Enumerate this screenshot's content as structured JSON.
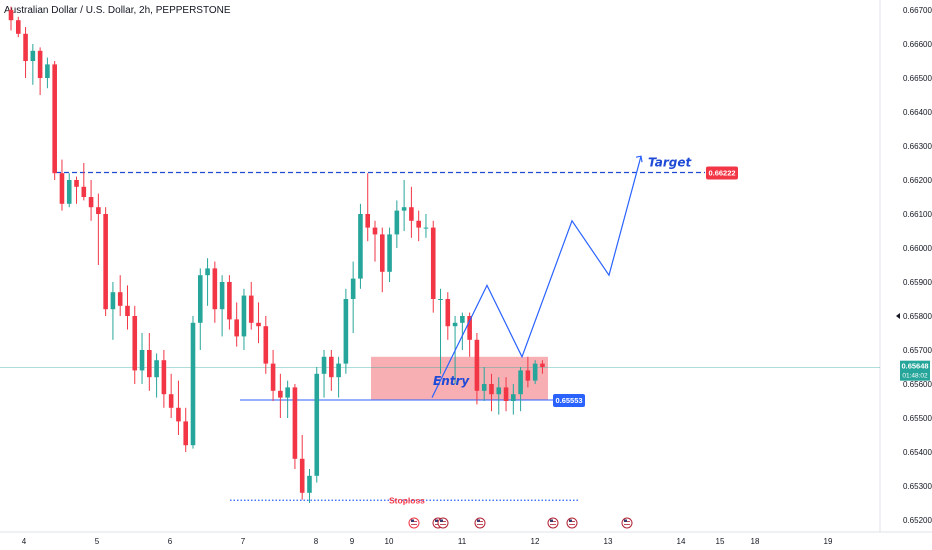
{
  "header": {
    "symbol_title": "Australian Dollar / U.S. Dollar, 2h, PEPPERSTONE"
  },
  "colors": {
    "bull": "#26a69a",
    "bear": "#f23645",
    "blue": "#2962ff",
    "annotation_blue": "#1e4ad6",
    "zone_fill": "#f7a1a7",
    "target_tag": "#f23645",
    "entry_tag": "#2962ff",
    "current_tag": "#26a69a"
  },
  "chart_data": {
    "type": "candlestick",
    "instrument": "AUDUSD",
    "timeframe": "2h",
    "ylim": [
      0.652,
      0.6672
    ],
    "y_ticks": [
      "0.66700",
      "0.66600",
      "0.66500",
      "0.66400",
      "0.66300",
      "0.66200",
      "0.66100",
      "0.66000",
      "0.65900",
      "0.65800",
      "0.65700",
      "0.65600",
      "0.65500",
      "0.65400",
      "0.65300",
      "0.65200"
    ],
    "x_ticks": [
      "4",
      "5",
      "6",
      "7",
      "8",
      "9",
      "10",
      "11",
      "12",
      "13",
      "14",
      "15",
      "18",
      "19"
    ],
    "candles": [
      [
        0.667,
        0.6671,
        0.6664,
        0.6667
      ],
      [
        0.6667,
        0.6668,
        0.6662,
        0.6663
      ],
      [
        0.6663,
        0.6665,
        0.665,
        0.6655
      ],
      [
        0.6655,
        0.666,
        0.6648,
        0.6658
      ],
      [
        0.6658,
        0.6659,
        0.6645,
        0.665
      ],
      [
        0.665,
        0.6656,
        0.6647,
        0.6654
      ],
      [
        0.6654,
        0.6655,
        0.662,
        0.6622
      ],
      [
        0.6622,
        0.6626,
        0.6611,
        0.6613
      ],
      [
        0.6613,
        0.6622,
        0.6612,
        0.662
      ],
      [
        0.662,
        0.6621,
        0.6613,
        0.6618
      ],
      [
        0.6618,
        0.6625,
        0.6614,
        0.6615
      ],
      [
        0.6615,
        0.662,
        0.6608,
        0.6612
      ],
      [
        0.6612,
        0.6616,
        0.6595,
        0.661
      ],
      [
        0.661,
        0.6612,
        0.658,
        0.6582
      ],
      [
        0.6582,
        0.659,
        0.6573,
        0.6587
      ],
      [
        0.6587,
        0.6592,
        0.658,
        0.6583
      ],
      [
        0.6583,
        0.6589,
        0.6576,
        0.658
      ],
      [
        0.658,
        0.6583,
        0.656,
        0.6564
      ],
      [
        0.6564,
        0.6575,
        0.656,
        0.657
      ],
      [
        0.657,
        0.6575,
        0.6558,
        0.6562
      ],
      [
        0.6562,
        0.6569,
        0.6556,
        0.6567
      ],
      [
        0.6567,
        0.657,
        0.6553,
        0.6557
      ],
      [
        0.6557,
        0.6563,
        0.655,
        0.6553
      ],
      [
        0.6553,
        0.6561,
        0.6545,
        0.6549
      ],
      [
        0.6549,
        0.6553,
        0.654,
        0.6542
      ],
      [
        0.6542,
        0.658,
        0.6541,
        0.6578
      ],
      [
        0.6578,
        0.6594,
        0.657,
        0.6592
      ],
      [
        0.6592,
        0.6597,
        0.6583,
        0.6594
      ],
      [
        0.6594,
        0.6596,
        0.6578,
        0.6582
      ],
      [
        0.6582,
        0.6592,
        0.6574,
        0.659
      ],
      [
        0.659,
        0.6592,
        0.6576,
        0.6579
      ],
      [
        0.6579,
        0.6584,
        0.6571,
        0.6574
      ],
      [
        0.6574,
        0.6588,
        0.657,
        0.6586
      ],
      [
        0.6586,
        0.659,
        0.6576,
        0.6578
      ],
      [
        0.6578,
        0.6584,
        0.6572,
        0.6577
      ],
      [
        0.6577,
        0.658,
        0.6563,
        0.6566
      ],
      [
        0.6566,
        0.657,
        0.6555,
        0.6558
      ],
      [
        0.6558,
        0.6563,
        0.655,
        0.6556
      ],
      [
        0.6556,
        0.6561,
        0.655,
        0.6559
      ],
      [
        0.6559,
        0.656,
        0.6535,
        0.6538
      ],
      [
        0.6538,
        0.6545,
        0.6526,
        0.6528
      ],
      [
        0.6528,
        0.6535,
        0.6525,
        0.6533
      ],
      [
        0.6533,
        0.6565,
        0.6531,
        0.6563
      ],
      [
        0.6563,
        0.657,
        0.6556,
        0.6568
      ],
      [
        0.6568,
        0.657,
        0.6558,
        0.6562
      ],
      [
        0.6562,
        0.6568,
        0.6556,
        0.6566
      ],
      [
        0.6566,
        0.6588,
        0.6563,
        0.6585
      ],
      [
        0.6585,
        0.6596,
        0.6575,
        0.6591
      ],
      [
        0.6591,
        0.6613,
        0.6588,
        0.661
      ],
      [
        0.661,
        0.6622,
        0.6602,
        0.6606
      ],
      [
        0.6606,
        0.6608,
        0.6596,
        0.6604
      ],
      [
        0.6604,
        0.6606,
        0.6587,
        0.6593
      ],
      [
        0.6593,
        0.6606,
        0.659,
        0.6604
      ],
      [
        0.6604,
        0.6614,
        0.66,
        0.6611
      ],
      [
        0.6611,
        0.662,
        0.6605,
        0.6612
      ],
      [
        0.6612,
        0.6618,
        0.6603,
        0.6608
      ],
      [
        0.6608,
        0.6611,
        0.6602,
        0.6606
      ],
      [
        0.6606,
        0.661,
        0.6603,
        0.6606
      ],
      [
        0.6606,
        0.6608,
        0.6581,
        0.6585
      ],
      [
        0.6585,
        0.6588,
        0.6563,
        0.6585
      ],
      [
        0.6585,
        0.6587,
        0.6573,
        0.6577
      ],
      [
        0.6577,
        0.658,
        0.656,
        0.6578
      ],
      [
        0.6578,
        0.6581,
        0.657,
        0.658
      ],
      [
        0.658,
        0.6581,
        0.6568,
        0.6573
      ],
      [
        0.6573,
        0.6575,
        0.6554,
        0.6558
      ],
      [
        0.6558,
        0.6565,
        0.6555,
        0.656
      ],
      [
        0.656,
        0.6563,
        0.6552,
        0.6557
      ],
      [
        0.6557,
        0.6562,
        0.6551,
        0.6559
      ],
      [
        0.6559,
        0.6562,
        0.6552,
        0.6555
      ],
      [
        0.6555,
        0.656,
        0.6551,
        0.6557
      ],
      [
        0.6557,
        0.6565,
        0.6552,
        0.6564
      ],
      [
        0.6564,
        0.6568,
        0.6559,
        0.6561
      ],
      [
        0.6561,
        0.6567,
        0.656,
        0.6566
      ],
      [
        0.6566,
        0.6567,
        0.6563,
        0.6565
      ]
    ],
    "target_line": 0.66222,
    "target_tag": "0.66222",
    "entry_line": 0.65553,
    "entry_tag": "0.65553",
    "entry_zone": [
      0.65553,
      0.6568
    ],
    "current_price": 0.65648,
    "current_price_tag": "0.65648",
    "countdown": "01:48:02",
    "stoploss_level": 0.65258,
    "projection_path": [
      0.6556,
      0.6589,
      0.6568,
      0.6608,
      0.6592,
      0.6627
    ],
    "annotations": {
      "target_label": "Target",
      "entry_label": "Entry",
      "stoploss_label": "Stoploss"
    }
  }
}
